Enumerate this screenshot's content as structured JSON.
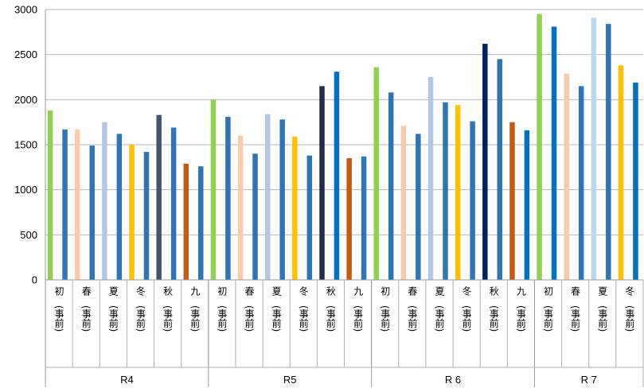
{
  "chart_data": {
    "type": "bar",
    "title": "",
    "xlabel": "",
    "ylabel": "",
    "ylim": [
      0,
      3000
    ],
    "yticks": [
      0,
      500,
      1000,
      1500,
      2000,
      2500,
      3000
    ],
    "ytick_labels": [
      "0",
      "500",
      "1000",
      "1500",
      "2000",
      "2500",
      "3000"
    ],
    "grid": true,
    "legend": "none",
    "groups": [
      {
        "label": "R4",
        "categories": [
          {
            "name": "初　(事前)",
            "values": [
              1880,
              1670
            ],
            "colors": [
              "#92d050",
              "#2e75b6"
            ]
          },
          {
            "name": "春　(事前)",
            "values": [
              1670,
              1490
            ],
            "colors": [
              "#f8cbad",
              "#2e75b6"
            ]
          },
          {
            "name": "夏　(事前)",
            "values": [
              1750,
              1620
            ],
            "colors": [
              "#b4c7e7",
              "#2e75b6"
            ]
          },
          {
            "name": "冬　(事前)",
            "values": [
              1500,
              1420
            ],
            "colors": [
              "#ffc000",
              "#2e75b6"
            ]
          },
          {
            "name": "秋　(事前)",
            "values": [
              1830,
              1690
            ],
            "colors": [
              "#44546a",
              "#2e75b6"
            ]
          },
          {
            "name": "九　(事前)",
            "values": [
              1290,
              1260
            ],
            "colors": [
              "#c55a11",
              "#2e75b6"
            ]
          }
        ]
      },
      {
        "label": "R5",
        "categories": [
          {
            "name": "初　(事前)",
            "values": [
              2000,
              1810
            ],
            "colors": [
              "#92d050",
              "#2e75b6"
            ]
          },
          {
            "name": "春　(事前)",
            "values": [
              1600,
              1400
            ],
            "colors": [
              "#f8cbad",
              "#2e75b6"
            ]
          },
          {
            "name": "夏　(事前)",
            "values": [
              1840,
              1780
            ],
            "colors": [
              "#b4c7e7",
              "#2e75b6"
            ]
          },
          {
            "name": "冬　(事前)",
            "values": [
              1590,
              1380
            ],
            "colors": [
              "#ffc000",
              "#2e75b6"
            ]
          },
          {
            "name": "秋　(事前)",
            "values": [
              2150,
              2310
            ],
            "colors": [
              "#1f2d45",
              "#0070c0"
            ]
          },
          {
            "name": "九　(事前)",
            "values": [
              1350,
              1370
            ],
            "colors": [
              "#c55a11",
              "#2e75b6"
            ]
          }
        ]
      },
      {
        "label": "R 6",
        "categories": [
          {
            "name": "初　(事前)",
            "values": [
              2360,
              2080
            ],
            "colors": [
              "#92d050",
              "#2e75b6"
            ]
          },
          {
            "name": "春　(事前)",
            "values": [
              1710,
              1620
            ],
            "colors": [
              "#f8cbad",
              "#2e75b6"
            ]
          },
          {
            "name": "夏　(事前)",
            "values": [
              2250,
              1970
            ],
            "colors": [
              "#b4c7e7",
              "#2e75b6"
            ]
          },
          {
            "name": "冬　(事前)",
            "values": [
              1940,
              1760
            ],
            "colors": [
              "#ffc000",
              "#2e75b6"
            ]
          },
          {
            "name": "秋　(事前)",
            "values": [
              2620,
              2450
            ],
            "colors": [
              "#002060",
              "#2e75b6"
            ]
          },
          {
            "name": "九　(事前)",
            "values": [
              1750,
              1660
            ],
            "colors": [
              "#c55a11",
              "#0070c0"
            ]
          }
        ]
      },
      {
        "label": "R 7",
        "categories": [
          {
            "name": "初　(事前)",
            "values": [
              2950,
              2810
            ],
            "colors": [
              "#92d050",
              "#0070c0"
            ]
          },
          {
            "name": "春　(事前)",
            "values": [
              2290,
              2150
            ],
            "colors": [
              "#f8cbad",
              "#2e75b6"
            ]
          },
          {
            "name": "夏　(事前)",
            "values": [
              2910,
              2840
            ],
            "colors": [
              "#bdd7ee",
              "#2e75b6"
            ]
          },
          {
            "name": "冬　(事前)",
            "values": [
              2380,
              2190
            ],
            "colors": [
              "#ffc000",
              "#0070c0"
            ]
          }
        ]
      }
    ]
  }
}
